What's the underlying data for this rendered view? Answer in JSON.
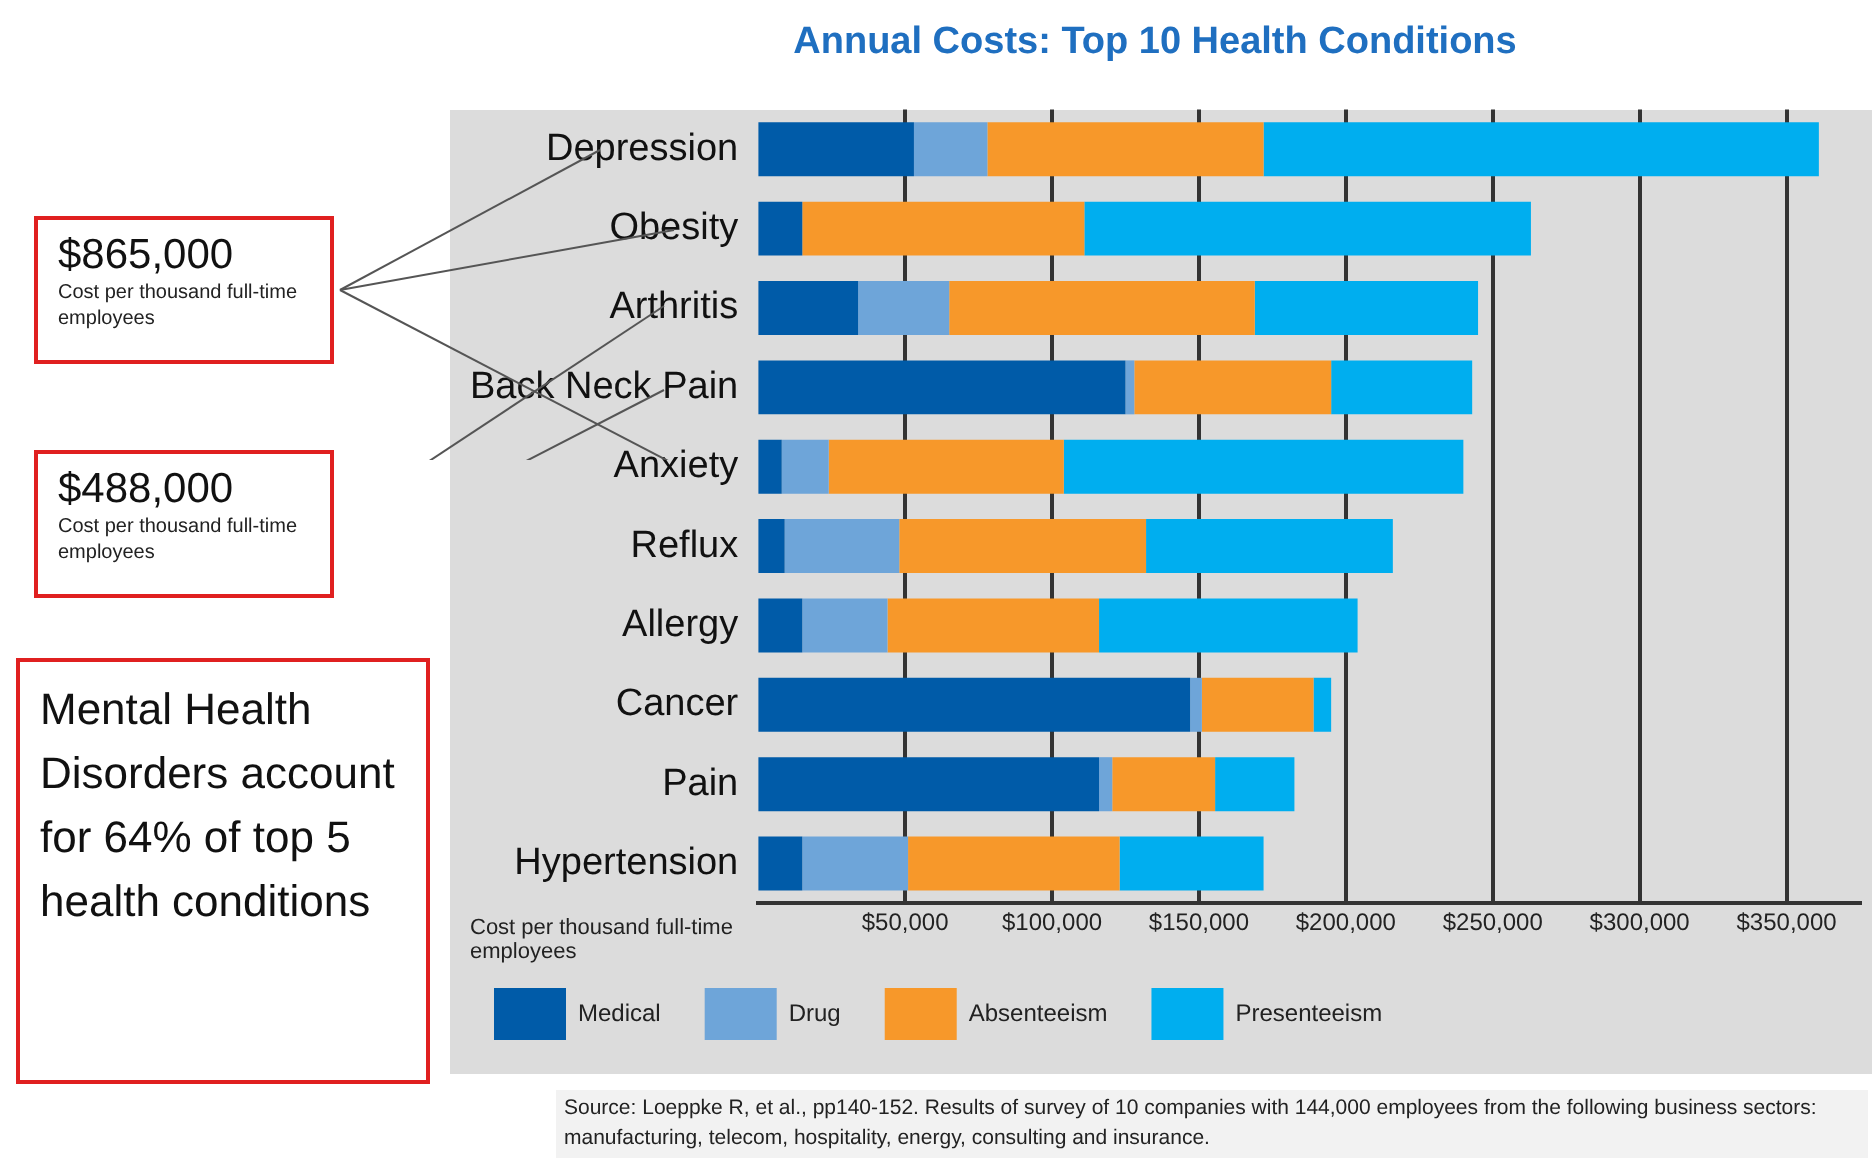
{
  "chart_data": {
    "type": "bar",
    "orientation": "horizontal",
    "stacked": true,
    "title": "Annual Costs: Top 10 Health Conditions",
    "xlabel": "Cost per thousand full-time employees",
    "categories": [
      "Depression",
      "Obesity",
      "Arthritis",
      "Back Neck Pain",
      "Anxiety",
      "Reflux",
      "Allergy",
      "Cancer",
      "Pain",
      "Hypertension"
    ],
    "series": [
      {
        "name": "Medical",
        "color": "#005ba8",
        "values": [
          53000,
          15000,
          34000,
          125000,
          8000,
          9000,
          15000,
          147000,
          116000,
          15000
        ]
      },
      {
        "name": "Drug",
        "color": "#6ea5d9",
        "values": [
          25000,
          0,
          31000,
          3000,
          16000,
          39000,
          29000,
          4000,
          4500,
          36000
        ]
      },
      {
        "name": "Absenteeism",
        "color": "#f7982a",
        "values": [
          94000,
          96000,
          104000,
          67000,
          80000,
          84000,
          72000,
          38000,
          35000,
          72000
        ]
      },
      {
        "name": "Presenteeism",
        "color": "#00aeef",
        "values": [
          189000,
          152000,
          76000,
          48000,
          136000,
          84000,
          88000,
          6000,
          27000,
          49000
        ]
      }
    ],
    "xlim": [
      0,
      375000
    ],
    "xticks": [
      {
        "value": 50000,
        "label": "$50,000"
      },
      {
        "value": 100000,
        "label": "$100,000"
      },
      {
        "value": 150000,
        "label": "$150,000"
      },
      {
        "value": 200000,
        "label": "$200,000"
      },
      {
        "value": 250000,
        "label": "$250,000"
      },
      {
        "value": 300000,
        "label": "$300,000"
      },
      {
        "value": 350000,
        "label": "$350,000"
      }
    ],
    "grid": "x",
    "legend": "bottom",
    "annotations": [
      "$865,000\nCost per thousand full-time employees",
      "$488,000\nCost per thousand full-time employees",
      "Mental Health Disorders account for 64% of top 5 health conditions",
      "Source: Loeppke R, et al., pp140-152. Results of survey of 10 companies with 144,000 employees from the following business sectors: manufacturing, telecom, hospitality, energy, consulting and insurance."
    ]
  }
}
